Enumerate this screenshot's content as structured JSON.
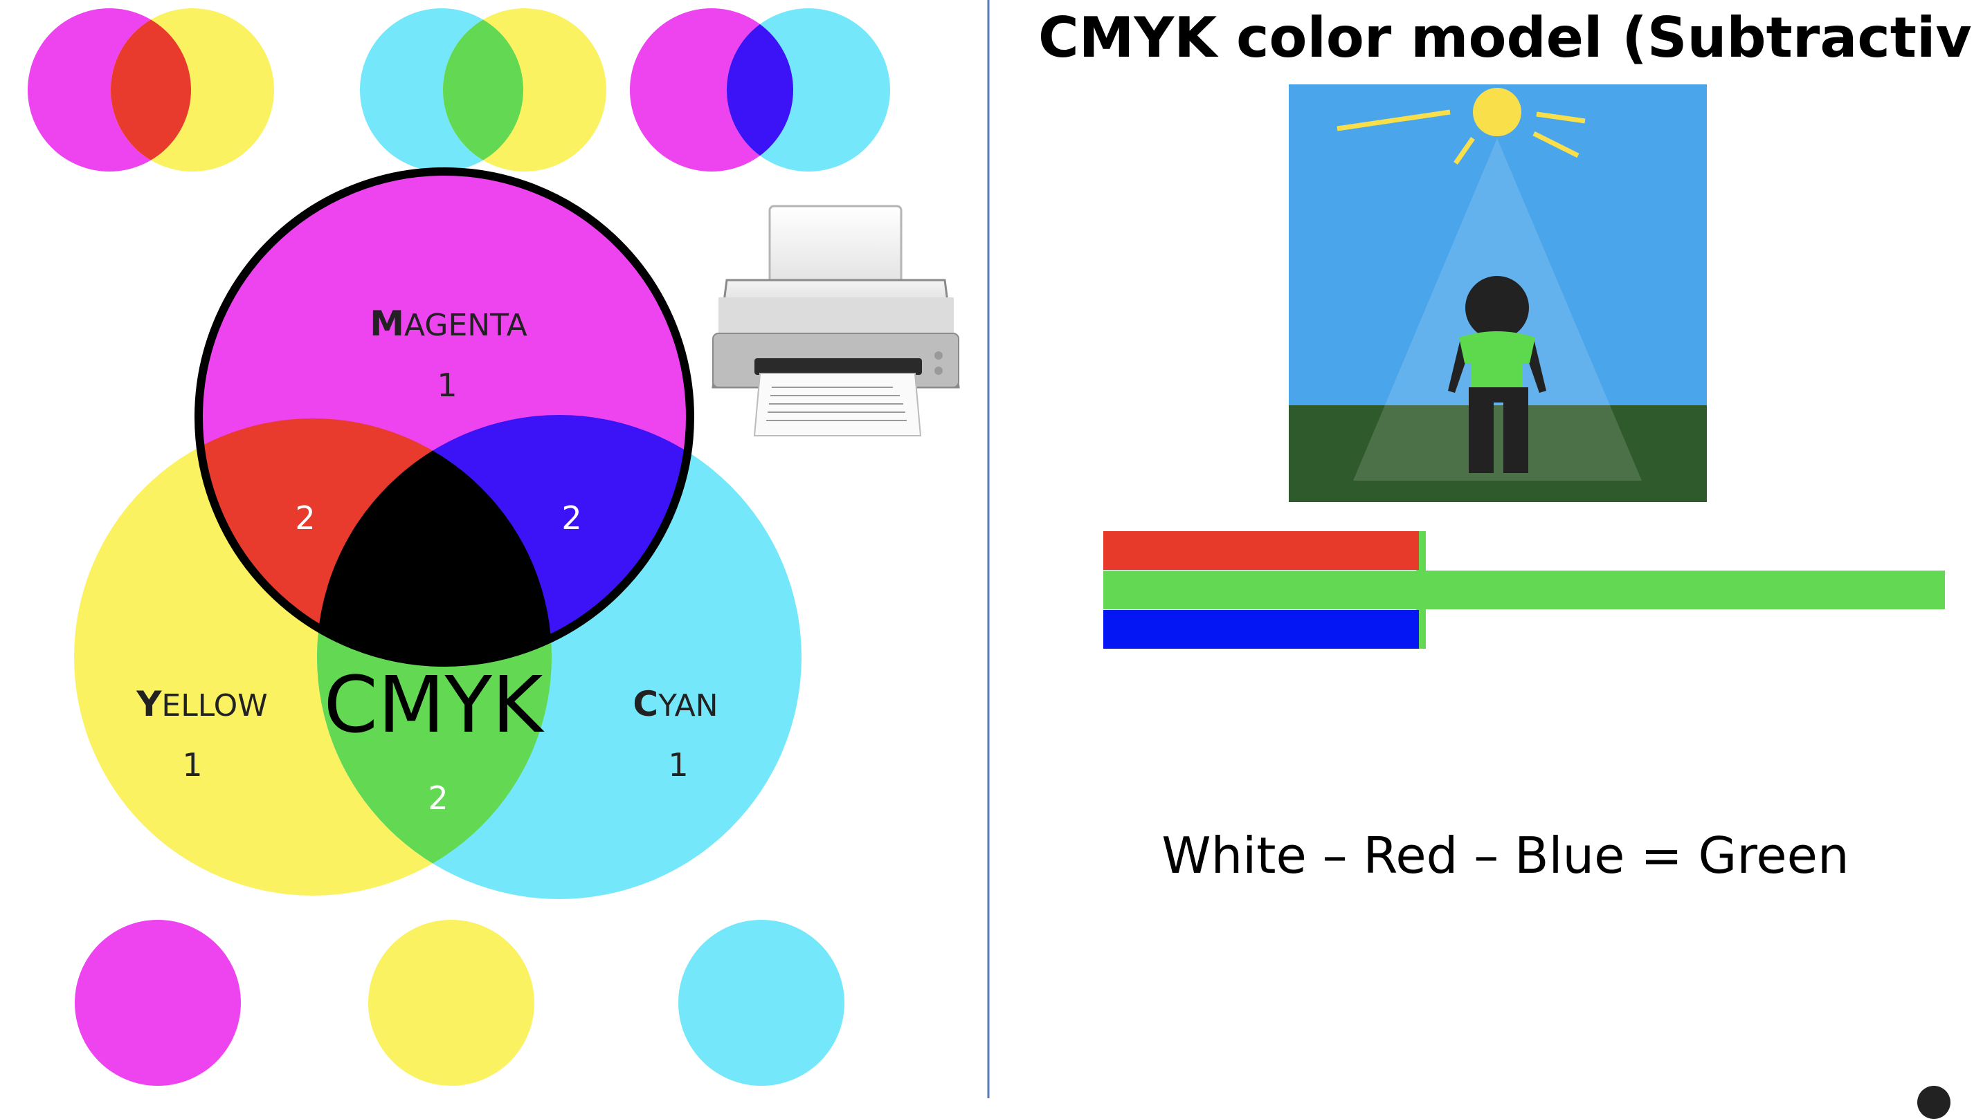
{
  "title": "CMYK color model (Subtractive)",
  "equation": "White – Red – Blue = Green",
  "venn": {
    "center_label": "CMYK",
    "magenta": {
      "label_initial": "M",
      "label_rest": "AGENTA",
      "count": "1"
    },
    "yellow": {
      "label_initial": "Y",
      "label_rest": "ELLOW",
      "count": "1"
    },
    "cyan": {
      "label_initial": "C",
      "label_rest": "YAN",
      "count": "1"
    },
    "overlap_counts": {
      "red": "2",
      "blue": "2",
      "green": "2"
    }
  },
  "colors": {
    "magenta": "#ee44f0",
    "yellow": "#fbf262",
    "cyan": "#74e8fa",
    "red": "#e83a2d",
    "blue": "#3b13f6",
    "green": "#62d853",
    "black": "#000000",
    "sky": "#4aa5ea",
    "ground": "#2f5a2c",
    "sun": "#f9e04a",
    "shirt": "#5ed94d",
    "figure": "#222222",
    "bar_red": "#e83a2a",
    "bar_green": "#62d853",
    "bar_blue": "#0516f5"
  },
  "light_bars": [
    {
      "color": "red",
      "relative_length": 0.375
    },
    {
      "color": "green",
      "relative_length": 1.0
    },
    {
      "color": "blue",
      "relative_length": 0.375
    }
  ],
  "icons": [
    "printer-icon",
    "sun-icon",
    "person-icon"
  ]
}
